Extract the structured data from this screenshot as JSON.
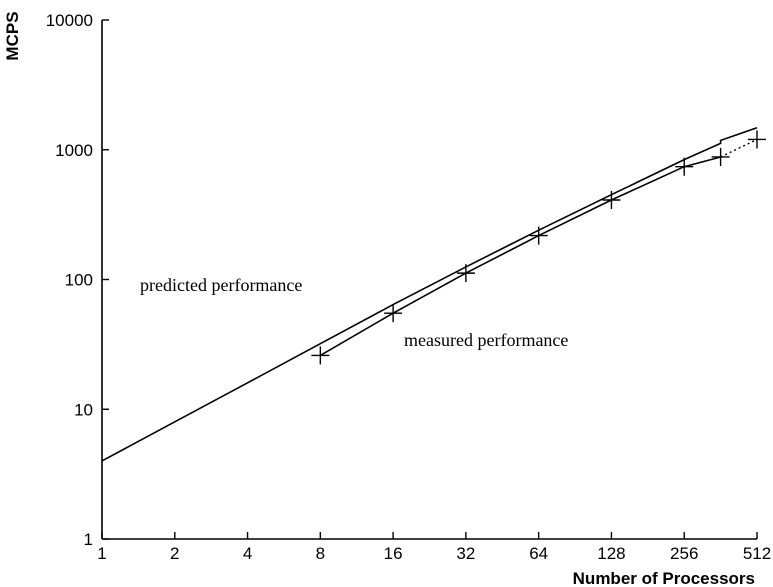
{
  "chart_data": {
    "type": "line",
    "title": "",
    "xlabel": "Number of Processors",
    "ylabel": "MCPS",
    "x_scale": "log2",
    "y_scale": "log10",
    "xlim": [
      1,
      512
    ],
    "ylim": [
      1,
      10000
    ],
    "x_ticks": [
      "1",
      "2",
      "4",
      "8",
      "16",
      "32",
      "64",
      "128",
      "256",
      "512"
    ],
    "y_ticks": [
      "1",
      "10",
      "100",
      "1000",
      "10000"
    ],
    "grid": false,
    "legend": "none",
    "series": [
      {
        "key": "predicted",
        "style": "solid line",
        "x": [
          1,
          2,
          4,
          8,
          16,
          32,
          64,
          128,
          256,
          362,
          362,
          512
        ],
        "y": [
          4,
          8,
          16,
          32,
          64,
          125,
          240,
          450,
          840,
          1120,
          1180,
          1480
        ]
      },
      {
        "key": "measured",
        "style": "solid line with plus markers, dotted final segment",
        "x": [
          8,
          16,
          32,
          64,
          128,
          256,
          362,
          512
        ],
        "y": [
          26,
          55,
          112,
          218,
          410,
          740,
          880,
          1200
        ]
      }
    ],
    "annotations": [
      {
        "text": "predicted performance",
        "series": "predicted"
      },
      {
        "text": "measured performance",
        "series": "measured"
      }
    ]
  }
}
